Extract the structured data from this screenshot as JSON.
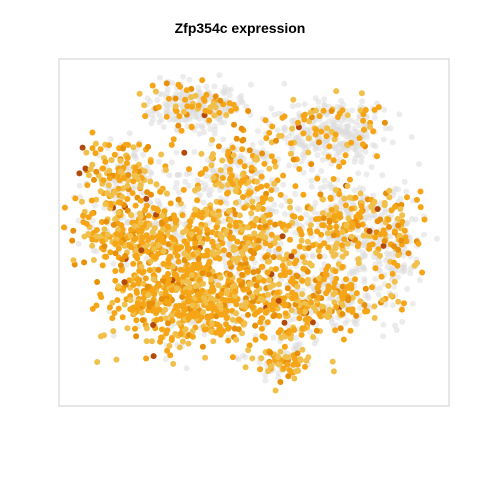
{
  "chart_data": {
    "type": "scatter",
    "title": "Zfp354c expression",
    "xlabel": "",
    "ylabel": "",
    "axes_drawn": false,
    "frame": true,
    "grid": false,
    "legend": "none",
    "colors": {
      "not_expressed": "#dcdcdc",
      "low": "#f0c04a",
      "medium": "#f5a516",
      "high": "#e8900a",
      "very_high": "#b34a0c"
    },
    "clusters": [
      {
        "name": "top-center",
        "cx": -0.35,
        "cy": 0.78,
        "sx": 0.14,
        "sy": 0.07,
        "n": 260,
        "frac_expr": 0.22
      },
      {
        "name": "top-right",
        "cx": 0.45,
        "cy": 0.62,
        "sx": 0.18,
        "sy": 0.1,
        "n": 340,
        "frac_expr": 0.22
      },
      {
        "name": "left-upper",
        "cx": -0.78,
        "cy": 0.35,
        "sx": 0.12,
        "sy": 0.12,
        "n": 220,
        "frac_expr": 0.55
      },
      {
        "name": "center-upper",
        "cx": -0.1,
        "cy": 0.35,
        "sx": 0.14,
        "sy": 0.12,
        "n": 240,
        "frac_expr": 0.45
      },
      {
        "name": "right-middle",
        "cx": 0.55,
        "cy": 0.05,
        "sx": 0.18,
        "sy": 0.15,
        "n": 380,
        "frac_expr": 0.45
      },
      {
        "name": "left-middle",
        "cx": -0.7,
        "cy": 0.0,
        "sx": 0.18,
        "sy": 0.1,
        "n": 330,
        "frac_expr": 0.7
      },
      {
        "name": "center",
        "cx": -0.1,
        "cy": -0.05,
        "sx": 0.22,
        "sy": 0.15,
        "n": 480,
        "frac_expr": 0.6
      },
      {
        "name": "lower-left",
        "cx": -0.45,
        "cy": -0.4,
        "sx": 0.22,
        "sy": 0.15,
        "n": 560,
        "frac_expr": 0.85
      },
      {
        "name": "lower-center",
        "cx": 0.1,
        "cy": -0.45,
        "sx": 0.2,
        "sy": 0.12,
        "n": 300,
        "frac_expr": 0.75
      },
      {
        "name": "lower-right",
        "cx": 0.5,
        "cy": -0.4,
        "sx": 0.16,
        "sy": 0.1,
        "n": 200,
        "frac_expr": 0.3
      },
      {
        "name": "far-right",
        "cx": 0.85,
        "cy": -0.1,
        "sx": 0.07,
        "sy": 0.18,
        "n": 140,
        "frac_expr": 0.25
      },
      {
        "name": "bottom-tail",
        "cx": 0.15,
        "cy": -0.8,
        "sx": 0.1,
        "sy": 0.06,
        "n": 100,
        "frac_expr": 0.55
      }
    ],
    "xlim": [
      -1.1,
      1.1
    ],
    "ylim": [
      -1.0,
      1.0
    ]
  }
}
